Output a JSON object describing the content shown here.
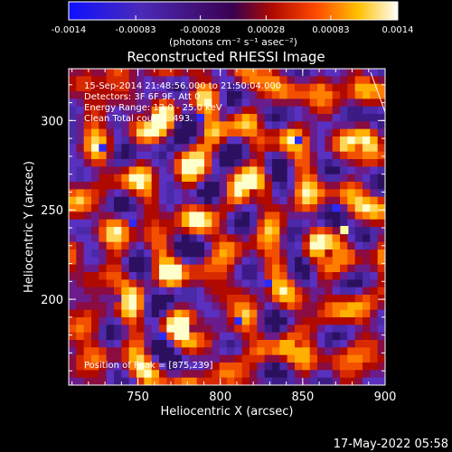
{
  "colorbar": {
    "tick_labels": [
      "-0.0014",
      "-0.00083",
      "-0.00028",
      "0.00028",
      "0.00083",
      "0.0014"
    ],
    "unit_label": "(photons cm⁻² s⁻¹ asec⁻²)"
  },
  "chart_data": {
    "type": "heatmap",
    "title": "Reconstructed RHESSI Image",
    "xlabel": "Heliocentric X (arcsec)",
    "ylabel": "Heliocentric Y (arcsec)",
    "xlim": [
      708,
      900
    ],
    "ylim": [
      152,
      329
    ],
    "x_ticks": [
      750,
      800,
      850,
      900
    ],
    "y_ticks": [
      200,
      250,
      300
    ],
    "colorbar_range": [
      -0.0014,
      0.0014
    ],
    "annotations": [
      "15-Sep-2014 21:48:56.000 to 21:50:04.000",
      "Detectors: 3F 6F 9F, Att 0",
      "Energy Range: 12.0 - 25.0 keV",
      "Clean    Total counts: 493."
    ],
    "peak_text": "Position of Peak = [875,239]",
    "peak": [
      875,
      239
    ]
  },
  "footer": {
    "timestamp": "17-May-2022 05:58"
  }
}
